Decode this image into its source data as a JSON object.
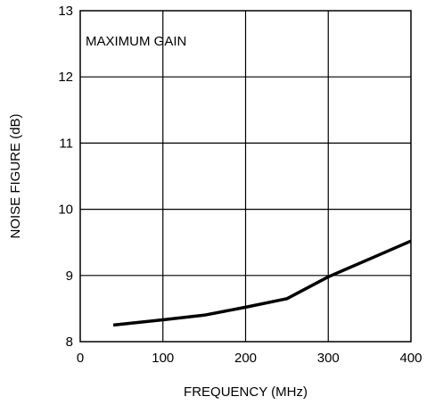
{
  "chart_data": {
    "type": "line",
    "title": "",
    "xlabel": "FREQUENCY (MHz)",
    "ylabel": "NOISE FIGURE (dB)",
    "xlim": [
      0,
      400
    ],
    "ylim": [
      8,
      13
    ],
    "xticks": [
      0,
      100,
      200,
      300,
      400
    ],
    "yticks": [
      8,
      9,
      10,
      11,
      12,
      13
    ],
    "grid": true,
    "annotation": "MAXIMUM GAIN",
    "series": [
      {
        "x": [
          40,
          100,
          150,
          200,
          250,
          300,
          350,
          400
        ],
        "y": [
          8.25,
          8.33,
          8.4,
          8.52,
          8.65,
          8.98,
          9.25,
          9.52
        ]
      }
    ],
    "colors": {
      "line": "#000000",
      "grid": "#000000"
    }
  }
}
